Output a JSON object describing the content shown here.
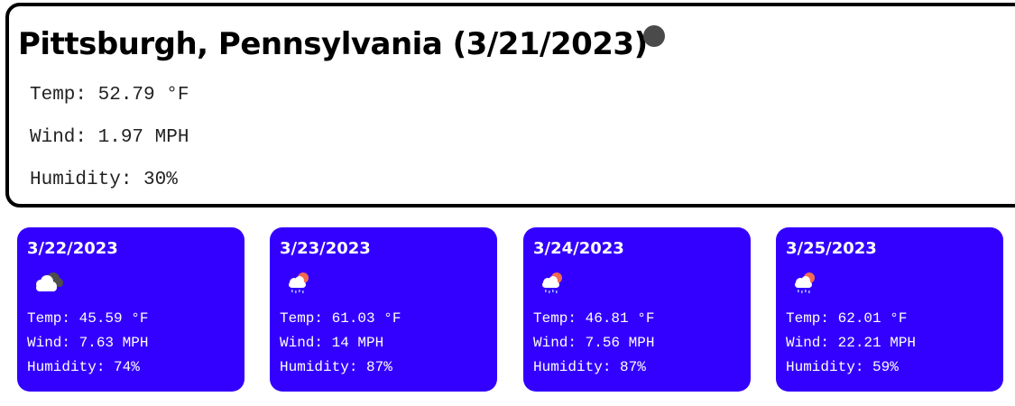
{
  "current": {
    "title": "Pittsburgh, Pennsylvania (3/21/2023)",
    "temp": "Temp: 52.79 °F",
    "wind": "Wind: 1.97 MPH",
    "humidity": "Humidity: 30%"
  },
  "forecast": [
    {
      "date": "3/22/2023",
      "icon": "cloudy-icon",
      "temp": "Temp: 45.59 °F",
      "wind": "Wind: 7.63 MPH",
      "humidity": "Humidity: 74%"
    },
    {
      "date": "3/23/2023",
      "icon": "sun-rain-cloud-icon",
      "temp": "Temp: 61.03 °F",
      "wind": "Wind: 14 MPH",
      "humidity": "Humidity: 87%"
    },
    {
      "date": "3/24/2023",
      "icon": "sun-rain-cloud-icon",
      "temp": "Temp: 46.81 °F",
      "wind": "Wind: 7.56 MPH",
      "humidity": "Humidity: 87%"
    },
    {
      "date": "3/25/2023",
      "icon": "sun-rain-cloud-icon",
      "temp": "Temp: 62.01 °F",
      "wind": "Wind: 22.21 MPH",
      "humidity": "Humidity: 59%"
    }
  ],
  "colors": {
    "card_background": "#3300ff",
    "card_text": "#ffffff",
    "panel_border": "#000000",
    "current_icon": "#4a4a4a"
  }
}
